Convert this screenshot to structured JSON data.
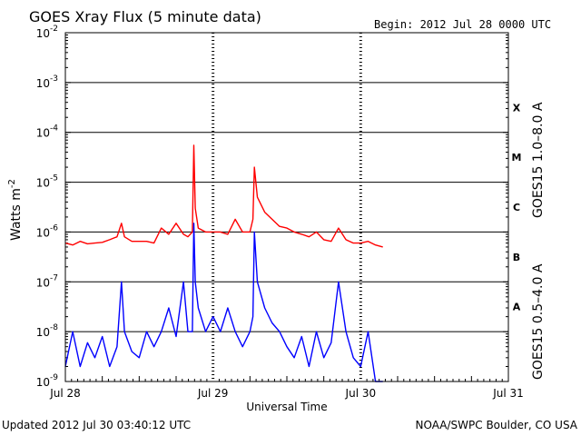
{
  "chart_data": {
    "type": "line",
    "title": "GOES Xray Flux (5 minute data)",
    "begin_label": "Begin:  2012 Jul 28 0000 UTC",
    "updated_label": "Updated 2012 Jul 30 03:40:12 UTC",
    "credit": "NOAA/SWPC Boulder, CO USA",
    "xlabel": "Universal Time",
    "ylabel": "Watts m",
    "ylabel_exp": "-2",
    "yscale": "log",
    "ylim": [
      1e-09,
      0.01
    ],
    "xlim": [
      0,
      3
    ],
    "x_unit": "days since Jul 28 00:00 UTC",
    "grid": true,
    "xticks": [
      {
        "x": 0,
        "label": "Jul 28"
      },
      {
        "x": 1,
        "label": "Jul 29"
      },
      {
        "x": 2,
        "label": "Jul 30"
      },
      {
        "x": 3,
        "label": "Jul 31"
      }
    ],
    "yticks": [
      {
        "exp": -9,
        "label": "10",
        "sup": "-9"
      },
      {
        "exp": -8,
        "label": "10",
        "sup": "-8"
      },
      {
        "exp": -7,
        "label": "10",
        "sup": "-7"
      },
      {
        "exp": -6,
        "label": "10",
        "sup": "-6"
      },
      {
        "exp": -5,
        "label": "10",
        "sup": "-5"
      },
      {
        "exp": -4,
        "label": "10",
        "sup": "-4"
      },
      {
        "exp": -3,
        "label": "10",
        "sup": "-3"
      },
      {
        "exp": -2,
        "label": "10",
        "sup": "-2"
      }
    ],
    "flare_classes": [
      {
        "label": "X",
        "exp": -3.5
      },
      {
        "label": "M",
        "exp": -4.5
      },
      {
        "label": "C",
        "exp": -5.5
      },
      {
        "label": "B",
        "exp": -6.5
      },
      {
        "label": "A",
        "exp": -7.5
      }
    ],
    "series": [
      {
        "name": "GOES15 1.0–8.0 A",
        "color": "#ff0000",
        "x": [
          0,
          0.05,
          0.1,
          0.15,
          0.2,
          0.25,
          0.3,
          0.35,
          0.38,
          0.4,
          0.45,
          0.5,
          0.55,
          0.6,
          0.65,
          0.7,
          0.75,
          0.8,
          0.83,
          0.86,
          0.87,
          0.88,
          0.9,
          0.95,
          1.0,
          1.05,
          1.1,
          1.15,
          1.2,
          1.25,
          1.27,
          1.28,
          1.3,
          1.35,
          1.4,
          1.45,
          1.5,
          1.55,
          1.6,
          1.65,
          1.7,
          1.75,
          1.8,
          1.85,
          1.9,
          1.95,
          2.0,
          2.05,
          2.1,
          2.15
        ],
        "y": [
          6e-07,
          5.5e-07,
          6.5e-07,
          5.8e-07,
          6e-07,
          6.2e-07,
          7e-07,
          8e-07,
          1.5e-06,
          8e-07,
          6.5e-07,
          6.5e-07,
          6.5e-07,
          6e-07,
          1.2e-06,
          9e-07,
          1.5e-06,
          9e-07,
          8e-07,
          1e-06,
          5.5e-05,
          3e-06,
          1.2e-06,
          1e-06,
          1e-06,
          1e-06,
          9e-07,
          1.8e-06,
          1e-06,
          1e-06,
          1.8e-06,
          2e-05,
          5e-06,
          2.5e-06,
          1.8e-06,
          1.3e-06,
          1.2e-06,
          1e-06,
          9e-07,
          8e-07,
          1e-06,
          7e-07,
          6.5e-07,
          1.2e-06,
          7e-07,
          6e-07,
          6e-07,
          6.5e-07,
          5.5e-07,
          5e-07
        ]
      },
      {
        "name": "GOES15 0.5–4.0 A",
        "color": "#0000ff",
        "x": [
          0,
          0.05,
          0.1,
          0.15,
          0.2,
          0.25,
          0.3,
          0.35,
          0.38,
          0.4,
          0.45,
          0.5,
          0.55,
          0.6,
          0.65,
          0.7,
          0.75,
          0.8,
          0.83,
          0.86,
          0.87,
          0.88,
          0.9,
          0.95,
          1.0,
          1.05,
          1.1,
          1.15,
          1.2,
          1.25,
          1.27,
          1.28,
          1.3,
          1.35,
          1.4,
          1.45,
          1.5,
          1.55,
          1.6,
          1.65,
          1.7,
          1.75,
          1.8,
          1.85,
          1.9,
          1.95,
          2.0,
          2.05,
          2.1,
          2.15
        ],
        "y": [
          2e-09,
          1e-08,
          2e-09,
          6e-09,
          3e-09,
          8e-09,
          2e-09,
          5e-09,
          1e-07,
          1e-08,
          4e-09,
          3e-09,
          1e-08,
          5e-09,
          1e-08,
          3e-08,
          8e-09,
          1e-07,
          1e-08,
          1e-08,
          1.5e-06,
          1e-07,
          3e-08,
          1e-08,
          2e-08,
          1e-08,
          3e-08,
          1e-08,
          5e-09,
          1e-08,
          2e-08,
          1e-06,
          1e-07,
          3e-08,
          1.5e-08,
          1e-08,
          5e-09,
          3e-09,
          8e-09,
          2e-09,
          1e-08,
          3e-09,
          6e-09,
          1e-07,
          1e-08,
          3e-09,
          2e-09,
          1e-08,
          1e-09,
          1e-09
        ]
      }
    ]
  }
}
